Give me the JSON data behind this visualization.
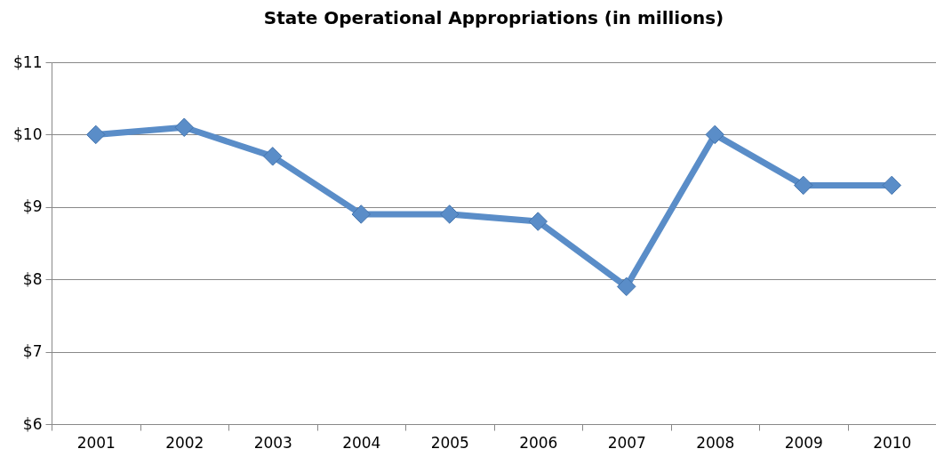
{
  "chart_data": {
    "type": "line",
    "title": "State Operational Appropriations (in millions)",
    "categories": [
      "2001",
      "2002",
      "2003",
      "2004",
      "2005",
      "2006",
      "2007",
      "2008",
      "2009",
      "2010"
    ],
    "series": [
      {
        "color": "#5a8dc8",
        "values": [
          10.0,
          10.1,
          9.7,
          8.9,
          8.9,
          8.8,
          7.9,
          10.0,
          9.3,
          9.3
        ]
      }
    ],
    "ylim": [
      6,
      11
    ],
    "yticks": [
      {
        "value": 6,
        "label": "$6"
      },
      {
        "value": 7,
        "label": "$7"
      },
      {
        "value": 8,
        "label": "$8"
      },
      {
        "value": 9,
        "label": "$9"
      },
      {
        "value": 10,
        "label": "$10"
      },
      {
        "value": 11,
        "label": "$11"
      }
    ],
    "grid": "y",
    "legend": false,
    "marker": "diamond",
    "line_style": "solid"
  }
}
